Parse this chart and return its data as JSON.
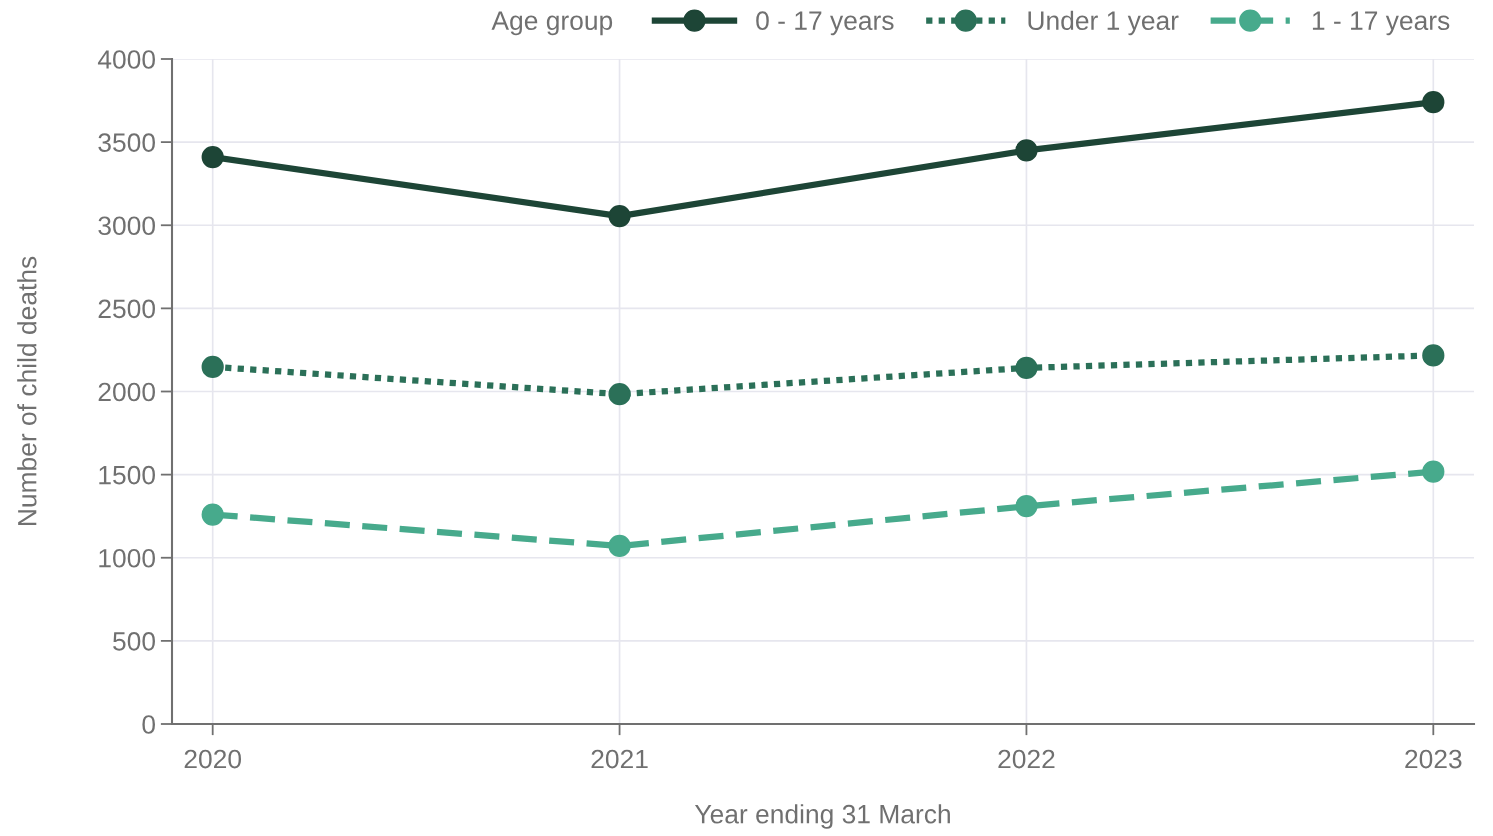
{
  "chart_data": {
    "type": "line",
    "xlabel": "Year ending 31 March",
    "ylabel": "Number of child deaths",
    "legend_title": "Age group",
    "legend": "top right",
    "grid": true,
    "marker": "circle",
    "x": [
      2020,
      2021,
      2022,
      2023
    ],
    "xlim": [
      2019.9,
      2023.1
    ],
    "xticks": [
      2020,
      2021,
      2022,
      2023
    ],
    "ylim": [
      0,
      4000
    ],
    "yticks": [
      0,
      500,
      1000,
      1500,
      2000,
      2500,
      3000,
      3500,
      4000
    ],
    "series": [
      {
        "name": "0 - 17 years",
        "color": "#1d4536",
        "line_style": "solid",
        "values": [
          3410,
          3055,
          3450,
          3740
        ]
      },
      {
        "name": "Under 1 year",
        "color": "#2b7058",
        "line_style": "dotted",
        "values": [
          2148,
          1984,
          2142,
          2217
        ]
      },
      {
        "name": "1 - 17 years",
        "color": "#47aa8c",
        "line_style": "dashed",
        "values": [
          1260,
          1071,
          1310,
          1518
        ]
      }
    ]
  }
}
